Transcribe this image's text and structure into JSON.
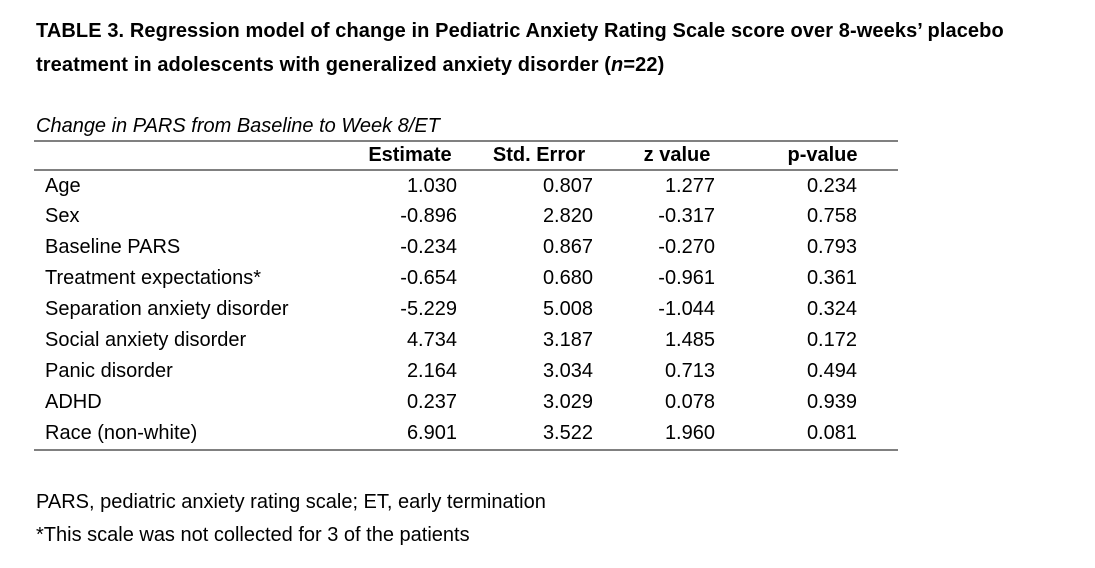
{
  "title": {
    "line1": "TABLE 3. Regression model of change in Pediatric Anxiety Rating Scale score over 8-weeks’ placebo",
    "line2_prefix": "treatment in adolescents with generalized anxiety disorder (",
    "line2_n": "n",
    "line2_suffix": "=22)"
  },
  "subtitle": "Change in PARS from Baseline to Week 8/ET",
  "table": {
    "columns": [
      "",
      "Estimate",
      "Std. Error",
      "z value",
      "p-value"
    ],
    "rows": [
      {
        "label": "Age",
        "estimate": "1.030",
        "std_error": "0.807",
        "z_value": "1.277",
        "p_value": "0.234"
      },
      {
        "label": "Sex",
        "estimate": "-0.896",
        "std_error": "2.820",
        "z_value": "-0.317",
        "p_value": "0.758"
      },
      {
        "label": "Baseline PARS",
        "estimate": "-0.234",
        "std_error": "0.867",
        "z_value": "-0.270",
        "p_value": "0.793"
      },
      {
        "label": "Treatment expectations*",
        "estimate": "-0.654",
        "std_error": "0.680",
        "z_value": "-0.961",
        "p_value": "0.361"
      },
      {
        "label": "Separation anxiety disorder",
        "estimate": "-5.229",
        "std_error": "5.008",
        "z_value": "-1.044",
        "p_value": "0.324"
      },
      {
        "label": "Social anxiety disorder",
        "estimate": "4.734",
        "std_error": "3.187",
        "z_value": "1.485",
        "p_value": "0.172"
      },
      {
        "label": "Panic disorder",
        "estimate": "2.164",
        "std_error": "3.034",
        "z_value": "0.713",
        "p_value": "0.494"
      },
      {
        "label": "ADHD",
        "estimate": "0.237",
        "std_error": "3.029",
        "z_value": "0.078",
        "p_value": "0.939"
      },
      {
        "label": "Race (non-white)",
        "estimate": "6.901",
        "std_error": "3.522",
        "z_value": "1.960",
        "p_value": "0.081"
      }
    ]
  },
  "footnotes": [
    "PARS, pediatric anxiety rating scale; ET, early termination",
    "*This scale was not collected for 3 of the patients"
  ],
  "colors": {
    "rule": "#808080",
    "text": "#000000",
    "background": "#ffffff"
  }
}
